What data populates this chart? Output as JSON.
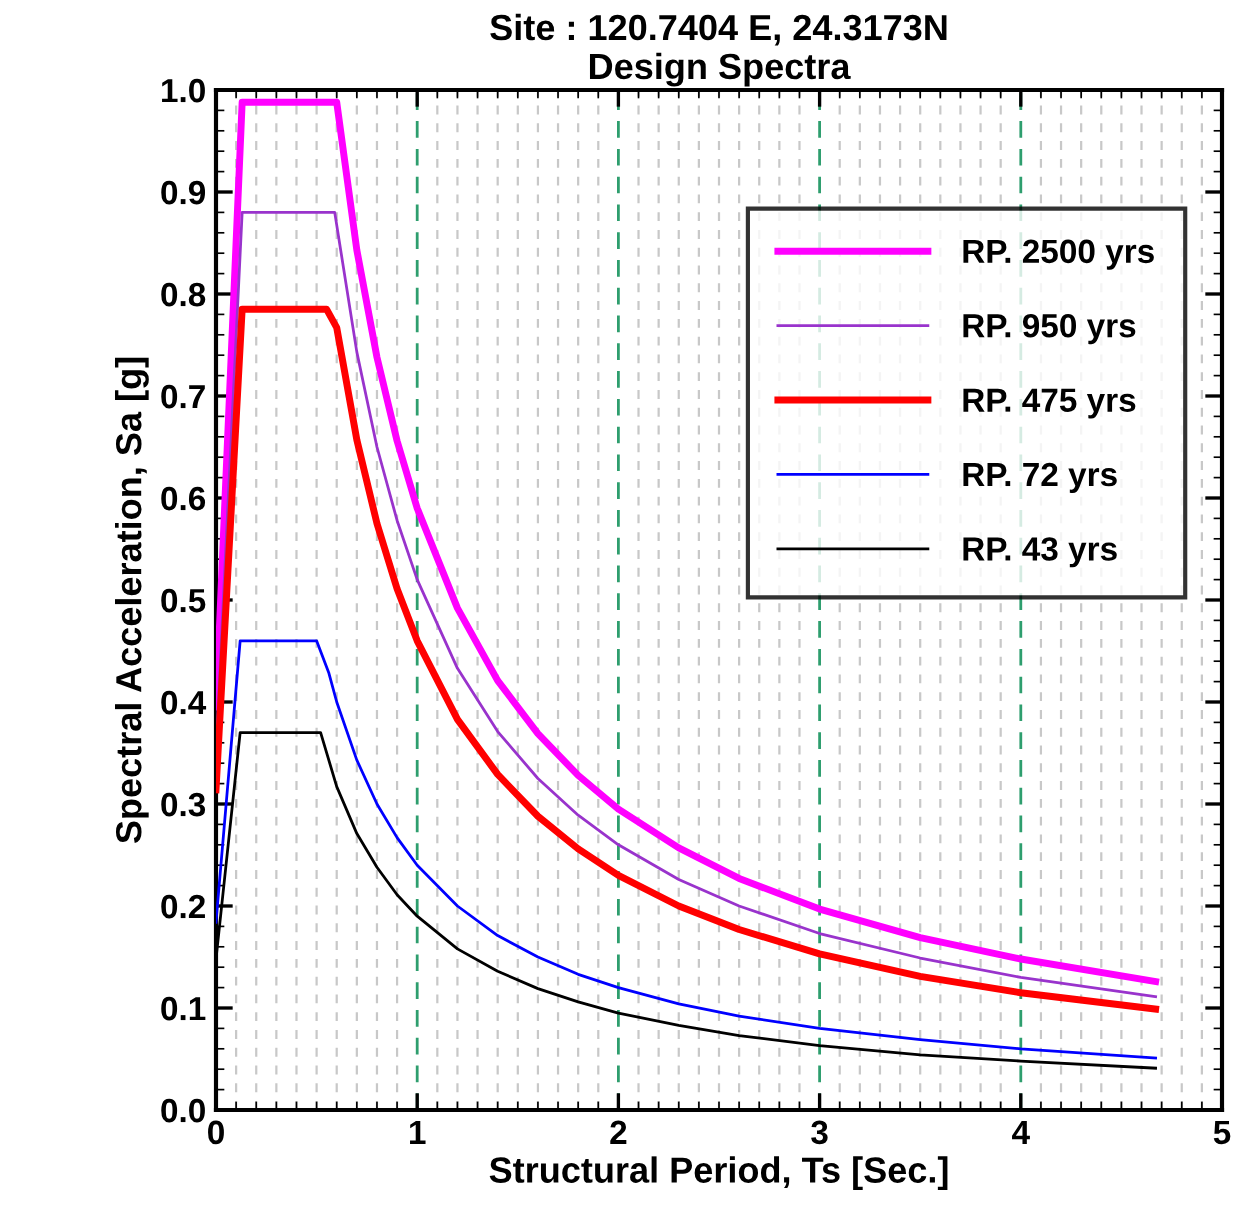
{
  "chart_data": {
    "type": "line",
    "title": "Site : 120.7404 E, 24.3173N",
    "subtitle": "Design Spectra",
    "xlabel": "Structural Period, Ts [Sec.]",
    "ylabel": "Spectral Acceleration, Sa [g]",
    "xlim": [
      0,
      5
    ],
    "xticks": [
      0,
      1,
      2,
      3,
      4,
      5
    ],
    "ylim": [
      0,
      1
    ],
    "yticks": [
      {
        "value": 0,
        "label": "0.0"
      },
      0.1,
      0.2,
      0.3,
      0.4,
      0.5,
      0.6,
      0.7,
      0.8,
      0.9,
      {
        "value": 1,
        "label": "1.0"
      }
    ],
    "grid": "x",
    "legend": "top right",
    "marker": "none",
    "line_style": "solid",
    "series": [
      {
        "name": "RP. 2500 yrs",
        "color": "#ff00ff",
        "x": [
          0,
          0.13,
          0.6,
          0.7,
          0.8,
          0.9,
          1.0,
          1.2,
          1.4,
          1.6,
          1.8,
          2.0,
          2.3,
          2.6,
          3.0,
          3.5,
          4.0,
          4.67
        ],
        "values": [
          0.395,
          0.988,
          0.988,
          0.843,
          0.738,
          0.656,
          0.59,
          0.492,
          0.421,
          0.369,
          0.328,
          0.295,
          0.257,
          0.227,
          0.197,
          0.169,
          0.148,
          0.126
        ]
      },
      {
        "name": "RP. 950 yrs",
        "color": "#9933cc",
        "x": [
          0,
          0.13,
          0.59,
          0.7,
          0.8,
          0.9,
          1.0,
          1.2,
          1.4,
          1.6,
          1.8,
          2.0,
          2.3,
          2.6,
          3.0,
          3.5,
          4.0,
          4.67
        ],
        "values": [
          0.352,
          0.88,
          0.88,
          0.743,
          0.65,
          0.578,
          0.52,
          0.433,
          0.371,
          0.325,
          0.289,
          0.26,
          0.226,
          0.2,
          0.173,
          0.149,
          0.13,
          0.111
        ]
      },
      {
        "name": "RP. 475 yrs",
        "color": "#ff0000",
        "x": [
          0,
          0.13,
          0.55,
          0.6,
          0.7,
          0.8,
          0.9,
          1.0,
          1.2,
          1.4,
          1.6,
          1.8,
          2.0,
          2.3,
          2.6,
          3.0,
          3.5,
          4.0,
          4.67
        ],
        "values": [
          0.314,
          0.785,
          0.785,
          0.767,
          0.657,
          0.575,
          0.511,
          0.46,
          0.383,
          0.329,
          0.288,
          0.256,
          0.23,
          0.2,
          0.177,
          0.153,
          0.131,
          0.115,
          0.099
        ]
      },
      {
        "name": "RP. 72 yrs",
        "color": "#0000ff",
        "x": [
          0,
          0.12,
          0.5,
          0.56,
          0.6,
          0.7,
          0.8,
          0.9,
          1.0,
          1.2,
          1.4,
          1.6,
          1.8,
          2.0,
          2.3,
          2.6,
          3.0,
          3.5,
          4.0,
          4.67
        ],
        "values": [
          0.184,
          0.46,
          0.46,
          0.429,
          0.4,
          0.343,
          0.3,
          0.267,
          0.24,
          0.2,
          0.171,
          0.15,
          0.133,
          0.12,
          0.104,
          0.092,
          0.08,
          0.069,
          0.06,
          0.051
        ]
      },
      {
        "name": "RP. 43 yrs",
        "color": "#000000",
        "x": [
          0,
          0.12,
          0.52,
          0.6,
          0.7,
          0.8,
          0.9,
          1.0,
          1.2,
          1.4,
          1.6,
          1.8,
          2.0,
          2.3,
          2.6,
          3.0,
          3.5,
          4.0,
          4.67
        ],
        "values": [
          0.148,
          0.37,
          0.37,
          0.317,
          0.271,
          0.238,
          0.211,
          0.19,
          0.158,
          0.136,
          0.119,
          0.106,
          0.095,
          0.083,
          0.073,
          0.063,
          0.054,
          0.048,
          0.041
        ]
      }
    ]
  }
}
